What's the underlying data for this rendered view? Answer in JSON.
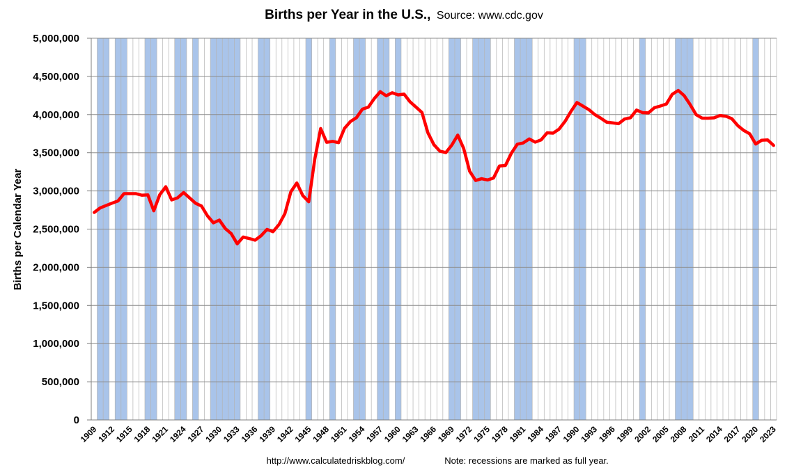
{
  "chart_data": {
    "type": "line",
    "title": "Births per Year in the U.S.,",
    "subtitle": "Source: www.cdc.gov",
    "ylabel": "Births per Calendar Year",
    "xlabel": "",
    "ylim": [
      0,
      5000000
    ],
    "xlim": [
      1909,
      2023
    ],
    "yticks": [
      0,
      500000,
      1000000,
      1500000,
      2000000,
      2500000,
      3000000,
      3500000,
      4000000,
      4500000,
      5000000
    ],
    "ytick_labels": [
      "0",
      "500,000",
      "1,000,000",
      "1,500,000",
      "2,000,000",
      "2,500,000",
      "3,000,000",
      "3,500,000",
      "4,000,000",
      "4,500,000",
      "5,000,000"
    ],
    "xticks": [
      1909,
      1912,
      1915,
      1918,
      1921,
      1924,
      1927,
      1930,
      1933,
      1936,
      1939,
      1942,
      1945,
      1948,
      1951,
      1954,
      1957,
      1960,
      1963,
      1966,
      1969,
      1972,
      1975,
      1978,
      1981,
      1984,
      1987,
      1990,
      1993,
      1996,
      1999,
      2002,
      2005,
      2008,
      2011,
      2014,
      2017,
      2020,
      2023
    ],
    "grid": true,
    "line_color": "#ff0000",
    "recession_color": "#a9c4ea",
    "recession_years": [
      1910,
      1911,
      1913,
      1914,
      1918,
      1919,
      1923,
      1924,
      1926,
      1929,
      1930,
      1931,
      1932,
      1933,
      1937,
      1938,
      1945,
      1949,
      1953,
      1954,
      1957,
      1958,
      1960,
      1969,
      1970,
      1973,
      1974,
      1975,
      1980,
      1981,
      1982,
      1990,
      1991,
      2001,
      2007,
      2008,
      2009,
      2020
    ],
    "series": [
      {
        "name": "",
        "x": [
          1909,
          1910,
          1911,
          1912,
          1913,
          1914,
          1915,
          1916,
          1917,
          1918,
          1919,
          1920,
          1921,
          1922,
          1923,
          1924,
          1925,
          1926,
          1927,
          1928,
          1929,
          1930,
          1931,
          1932,
          1933,
          1934,
          1935,
          1936,
          1937,
          1938,
          1939,
          1940,
          1941,
          1942,
          1943,
          1944,
          1945,
          1946,
          1947,
          1948,
          1949,
          1950,
          1951,
          1952,
          1953,
          1954,
          1955,
          1956,
          1957,
          1958,
          1959,
          1960,
          1961,
          1962,
          1963,
          1964,
          1965,
          1966,
          1967,
          1968,
          1969,
          1970,
          1971,
          1972,
          1973,
          1974,
          1975,
          1976,
          1977,
          1978,
          1979,
          1980,
          1981,
          1982,
          1983,
          1984,
          1985,
          1986,
          1987,
          1988,
          1989,
          1990,
          1991,
          1992,
          1993,
          1994,
          1995,
          1996,
          1997,
          1998,
          1999,
          2000,
          2001,
          2002,
          2003,
          2004,
          2005,
          2006,
          2007,
          2008,
          2009,
          2010,
          2011,
          2012,
          2013,
          2014,
          2015,
          2016,
          2017,
          2018,
          2019,
          2020,
          2021,
          2022,
          2023
        ],
        "values": [
          2718000,
          2777000,
          2809000,
          2840000,
          2869000,
          2965000,
          2965000,
          2964000,
          2944000,
          2948000,
          2740000,
          2950000,
          3055000,
          2882000,
          2910000,
          2979000,
          2909000,
          2839000,
          2802000,
          2674000,
          2582000,
          2618000,
          2506000,
          2440000,
          2307000,
          2396000,
          2377000,
          2355000,
          2413000,
          2496000,
          2466000,
          2559000,
          2703000,
          2989000,
          3104000,
          2939000,
          2858000,
          3411000,
          3817000,
          3637000,
          3649000,
          3632000,
          3820000,
          3909000,
          3959000,
          4071000,
          4097000,
          4210000,
          4300000,
          4246000,
          4286000,
          4258000,
          4268000,
          4167000,
          4098000,
          4027000,
          3760000,
          3606000,
          3521000,
          3502000,
          3600000,
          3731000,
          3556000,
          3258000,
          3137000,
          3160000,
          3144000,
          3168000,
          3327000,
          3333000,
          3494000,
          3612000,
          3629000,
          3681000,
          3639000,
          3669000,
          3761000,
          3757000,
          3809000,
          3910000,
          4041000,
          4158000,
          4111000,
          4065000,
          4000000,
          3953000,
          3900000,
          3891000,
          3881000,
          3942000,
          3959000,
          4059000,
          4026000,
          4022000,
          4090000,
          4112000,
          4138000,
          4266000,
          4316000,
          4248000,
          4131000,
          3999000,
          3954000,
          3953000,
          3957000,
          3988000,
          3978000,
          3946000,
          3855000,
          3792000,
          3748000,
          3614000,
          3664000,
          3668000,
          3596000
        ]
      }
    ],
    "footer_left": "http://www.calculatedriskblog.com/",
    "footer_right": "Note: recessions are marked as full year."
  }
}
